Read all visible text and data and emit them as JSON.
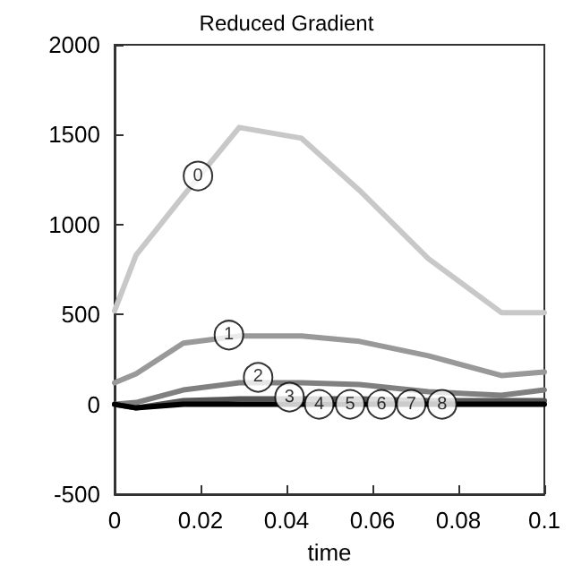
{
  "chart_data": {
    "type": "line",
    "title": "Reduced Gradient",
    "xlabel": "time",
    "x": [
      0,
      0.005,
      0.016,
      0.029,
      0.0435,
      0.057,
      0.073,
      0.09,
      0.1
    ],
    "series": [
      {
        "color": "#c8c8c8",
        "values": [
          520,
          830,
          1160,
          1540,
          1480,
          1190,
          810,
          510,
          510
        ]
      },
      {
        "color": "#999999",
        "values": [
          120,
          170,
          340,
          380,
          380,
          350,
          270,
          160,
          180
        ]
      },
      {
        "color": "#808080",
        "values": [
          0,
          10,
          80,
          120,
          120,
          110,
          70,
          50,
          80
        ]
      },
      {
        "color": "#555555",
        "values": [
          0,
          -20,
          20,
          30,
          30,
          30,
          20,
          20,
          20
        ]
      },
      {
        "color": "#000000",
        "values": [
          0,
          -20,
          0,
          0,
          0,
          0,
          0,
          0,
          0
        ]
      }
    ],
    "annotations": [
      {
        "text": "0",
        "x": 0.0194,
        "y": 1270
      },
      {
        "text": "1",
        "x": 0.0266,
        "y": 385
      },
      {
        "text": "2",
        "x": 0.0334,
        "y": 150
      },
      {
        "text": "3",
        "x": 0.0407,
        "y": 40
      },
      {
        "text": "4",
        "x": 0.0476,
        "y": 0
      },
      {
        "text": "5",
        "x": 0.0548,
        "y": 0
      },
      {
        "text": "6",
        "x": 0.0621,
        "y": 0
      },
      {
        "text": "7",
        "x": 0.069,
        "y": 0
      },
      {
        "text": "8",
        "x": 0.0762,
        "y": 0
      }
    ],
    "xlim": [
      0,
      0.1
    ],
    "xticks": [
      0,
      0.02,
      0.04,
      0.06,
      0.08,
      0.1
    ],
    "ylim": [
      -500,
      2000
    ],
    "yticks": [
      -500,
      0,
      500,
      1000,
      1500,
      2000
    ],
    "grid": false,
    "marker": "none",
    "line_style": "solid"
  }
}
